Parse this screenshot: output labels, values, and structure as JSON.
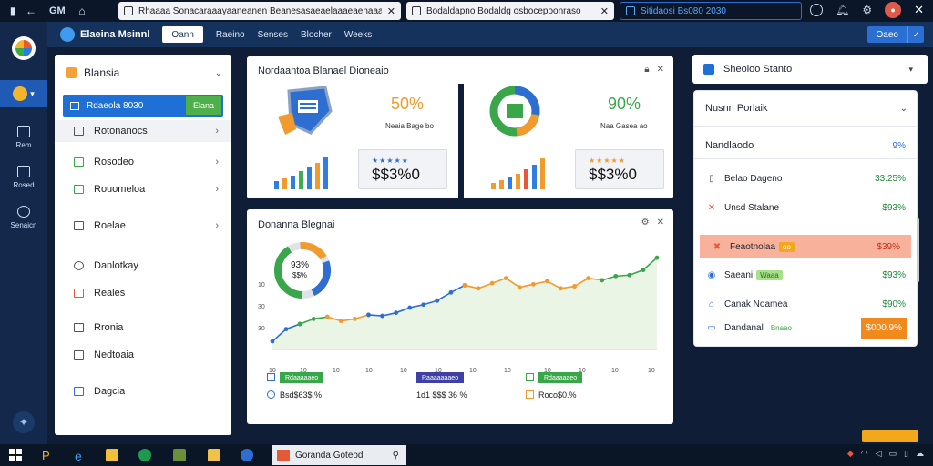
{
  "browser": {
    "app_label": "GM",
    "tabs": [
      {
        "label": "Rhaaaa Sonacaraaayaaneanen Beanesasaeaelaaaeaenaaan."
      },
      {
        "label": "Bodaldapno Bodaldg osbocepoonraso"
      },
      {
        "label": "Sitidaosi Bs080 2030"
      }
    ],
    "avatar_initial": ""
  },
  "app": {
    "title": "Elaeina Msinnl",
    "primary_button": "Oann",
    "menu": [
      "Raeino",
      "Senses",
      "Blocher",
      "Weeks"
    ],
    "right_button": "Oaeo"
  },
  "rail": {
    "items": [
      {
        "label": "Rem",
        "icon": "grid-icon"
      },
      {
        "label": "Rosed",
        "icon": "image-icon"
      },
      {
        "label": "Senaicn",
        "icon": "power-icon"
      }
    ]
  },
  "sidebar": {
    "title": "Blansia",
    "selected": {
      "label": "Rdaeola 8030",
      "badge": "Elana"
    },
    "items": [
      {
        "label": "Rotonanocs",
        "icon": "document-icon",
        "chevron": true
      },
      {
        "label": "Rosodeo",
        "icon": "bookmark-icon",
        "chevron": true
      },
      {
        "label": "Rouomeloa",
        "icon": "folder-icon",
        "chevron": true
      },
      {
        "label": "Roelae",
        "icon": "clipboard-icon",
        "chevron": true
      },
      {
        "label": "Danlotkay",
        "icon": "circle-icon",
        "chevron": false
      },
      {
        "label": "Reales",
        "icon": "tag-icon",
        "chevron": false
      },
      {
        "label": "Rronia",
        "icon": "page-icon",
        "chevron": false
      },
      {
        "label": "Nedtoaia",
        "icon": "list-icon",
        "chevron": false
      },
      {
        "label": "Dagcia",
        "icon": "flag-icon",
        "chevron": false
      }
    ]
  },
  "card1": {
    "title": "Nordaantoa Blanael Dioneaio",
    "pct": "50%",
    "pct_sub": "Neaia Bage bo",
    "stars": "★★★★★",
    "value": "$$3%0",
    "bars": [
      0.22,
      0.3,
      0.38,
      0.5,
      0.62,
      0.72,
      0.88
    ],
    "bar_colors": [
      "#2f7ee0",
      "#f19a2e",
      "#2f7ee0",
      "#3cae54",
      "#2f7ee0",
      "#f19a2e",
      "#2f7ee0"
    ]
  },
  "card2": {
    "pct": "90%",
    "pct_sub": "Naa Gasea ao",
    "stars": "★★★★★",
    "value": "$$3%0",
    "bars": [
      0.18,
      0.26,
      0.32,
      0.42,
      0.55,
      0.68,
      0.84
    ],
    "bar_colors": [
      "#f19a2e",
      "#f19a2e",
      "#2f7ee0",
      "#f19a2e",
      "#e6573b",
      "#2f7ee0",
      "#f19a2e"
    ]
  },
  "chart_card": {
    "title": "Donanna Blegnai",
    "donut_label": "93%",
    "donut_sub": "$$%",
    "legend": [
      {
        "chip": "Rdaaaaaeo",
        "val": "Bsd$63$.%",
        "color": "#3aa64a"
      },
      {
        "chip": "Raaaaaaaeo",
        "val": "1d1 $$$ 36 %",
        "color": "#3f3fa6"
      },
      {
        "chip": "Rdaaaaaeo",
        "val": "Roco$0.%",
        "color": "#3aa64a"
      }
    ]
  },
  "chart_data": {
    "type": "line",
    "y_ticks": [
      "10",
      "30",
      "30"
    ],
    "x_ticks": [
      "10",
      "10",
      "10",
      "10",
      "10",
      "10",
      "10",
      "10",
      "10",
      "10",
      "10",
      "10"
    ],
    "ylim": [
      0,
      100
    ],
    "series": [
      {
        "color": "#2f6ed1",
        "points": [
          [
            0,
            8
          ],
          [
            1,
            20
          ],
          [
            2,
            25
          ]
        ]
      },
      {
        "color": "#3aa64a",
        "points": [
          [
            2,
            25
          ],
          [
            3,
            30
          ],
          [
            4,
            32
          ]
        ]
      },
      {
        "color": "#f19a2e",
        "points": [
          [
            4,
            32
          ],
          [
            5,
            28
          ],
          [
            6,
            30
          ],
          [
            7,
            34
          ]
        ]
      },
      {
        "color": "#2f6ed1",
        "points": [
          [
            7,
            34
          ],
          [
            8,
            33
          ],
          [
            9,
            36
          ],
          [
            10,
            41
          ],
          [
            11,
            44
          ],
          [
            12,
            48
          ]
        ]
      },
      {
        "color": "#2f6ed1",
        "points": [
          [
            12,
            48
          ],
          [
            13,
            56
          ],
          [
            14,
            63
          ]
        ]
      },
      {
        "color": "#f19a2e",
        "points": [
          [
            14,
            63
          ],
          [
            15,
            60
          ],
          [
            16,
            65
          ],
          [
            17,
            70
          ],
          [
            18,
            61
          ],
          [
            19,
            64
          ],
          [
            20,
            67
          ],
          [
            21,
            60
          ],
          [
            22,
            62
          ]
        ]
      },
      {
        "color": "#f19a2e",
        "points": [
          [
            22,
            62
          ],
          [
            23,
            70
          ],
          [
            24,
            68
          ]
        ]
      },
      {
        "color": "#3aa64a",
        "points": [
          [
            24,
            68
          ],
          [
            25,
            72
          ],
          [
            26,
            73
          ],
          [
            27,
            78
          ],
          [
            28,
            90
          ]
        ]
      }
    ]
  },
  "right_panel": {
    "title": "Sheoioo Stanto",
    "header_row": {
      "label": "Nusnn Porlaik"
    },
    "rows": [
      {
        "label": "Nandlaodo",
        "val": "9%",
        "icon": "",
        "badge": "",
        "hl": false
      },
      {
        "label": "Belao Dageno",
        "val": "33.25%",
        "icon": "page-icon",
        "badge": "",
        "hl": false
      },
      {
        "label": "Unsd Stalane",
        "val": "$93%",
        "icon": "x-icon",
        "badge": "",
        "hl": false
      },
      {
        "label": "Feaotnolaa",
        "val": "$39%",
        "icon": "star-icon",
        "badge": "oo",
        "hl": true
      },
      {
        "label": "Saeani",
        "val": "$93%",
        "icon": "gear-icon",
        "badge": "Waaa",
        "hl": false
      },
      {
        "label": "Canak Noamea",
        "val": "$90%",
        "icon": "home-icon",
        "badge": "",
        "hl": false
      },
      {
        "label": "Dandanal",
        "val": "$000.9%",
        "icon": "monitor-icon",
        "badge": "Bnaao",
        "hl": false
      }
    ]
  },
  "taskbar": {
    "active_window": "Goranda Goteod"
  },
  "colors": {
    "accent": "#1e6fd6",
    "green": "#3aa64a",
    "orange": "#f19a2e",
    "highlight_row": "#f8b19a",
    "dark_bg": "#0f1e36"
  }
}
